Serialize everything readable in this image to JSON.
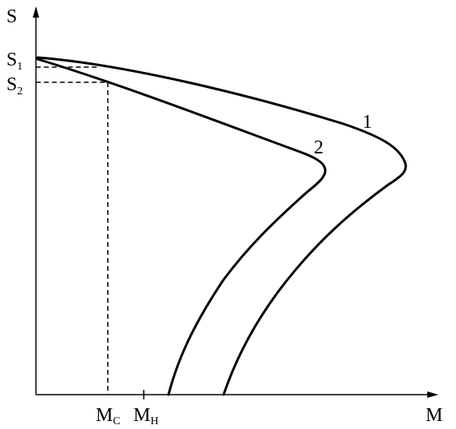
{
  "axes": {
    "y_label": "S",
    "x_label": "M"
  },
  "y_marks": [
    {
      "main": "S",
      "sub": "1"
    },
    {
      "main": "S",
      "sub": "2"
    }
  ],
  "x_marks": [
    {
      "main": "M",
      "sub": "С"
    },
    {
      "main": "M",
      "sub": "Н"
    }
  ],
  "curves": [
    {
      "label": "1"
    },
    {
      "label": "2"
    }
  ]
}
